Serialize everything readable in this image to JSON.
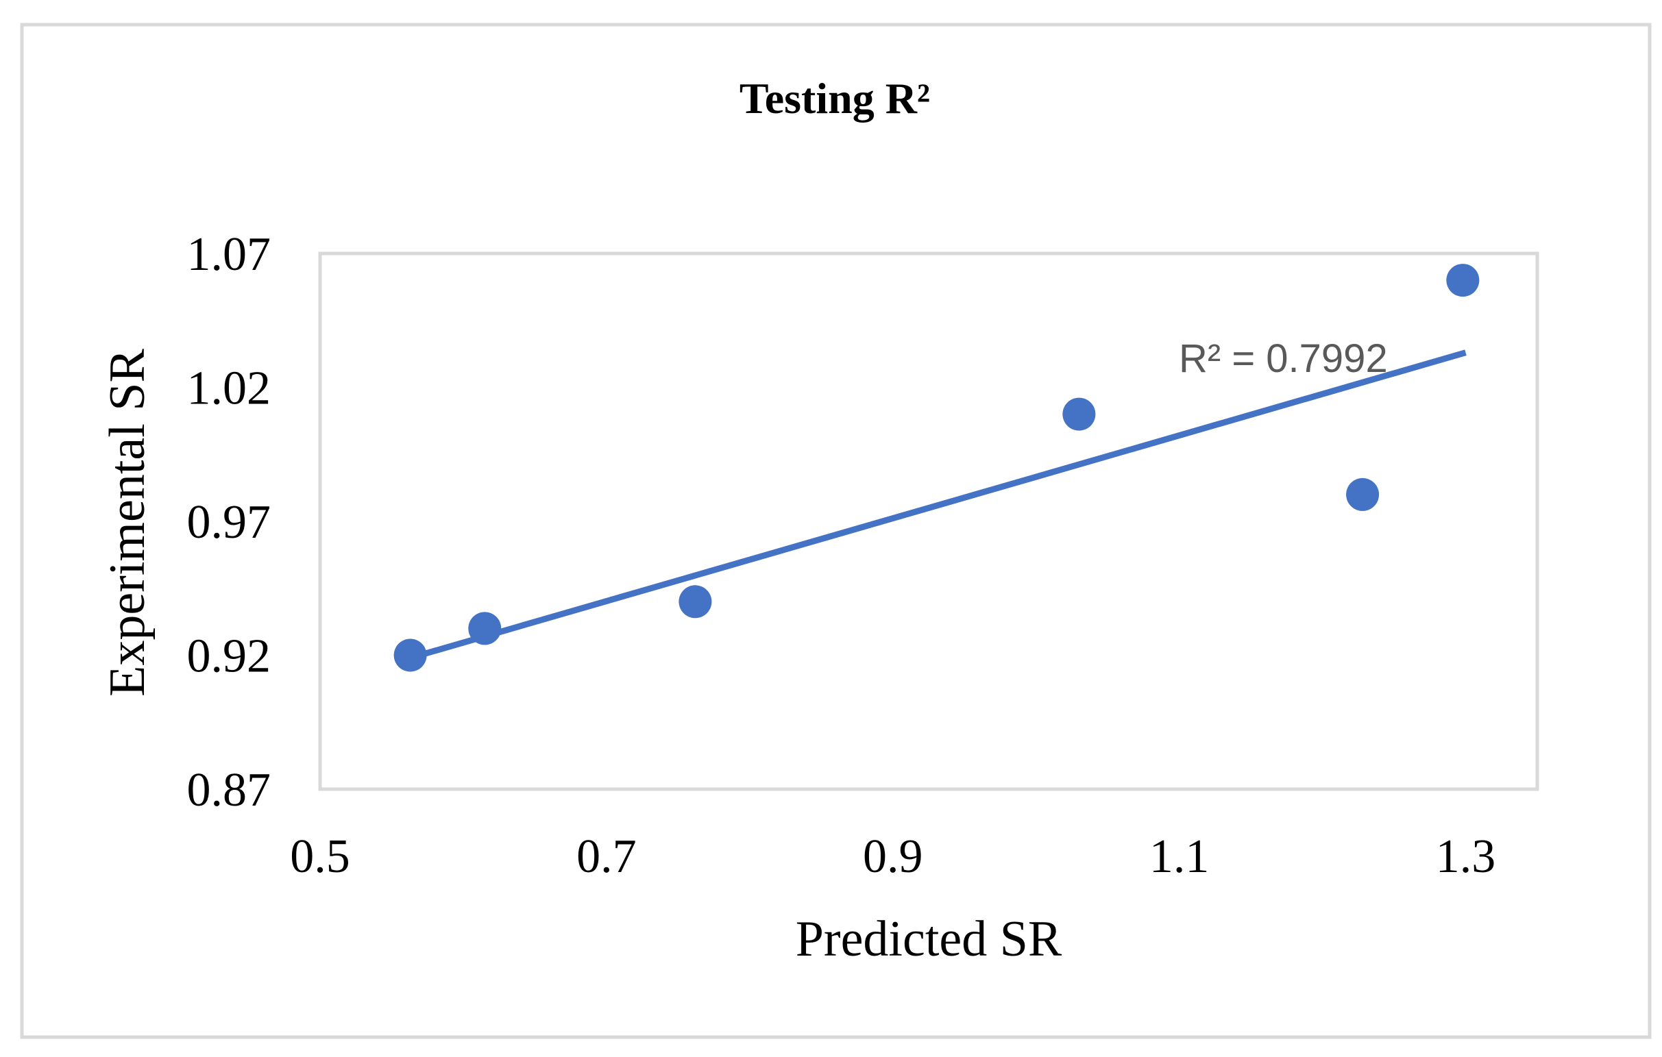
{
  "chart_data": {
    "type": "scatter",
    "title": "Testing R²",
    "xlabel": "Predicted SR",
    "ylabel": "Experimental SR",
    "xlim": [
      0.5,
      1.35
    ],
    "ylim": [
      0.87,
      1.07
    ],
    "x_ticks": [
      "0.5",
      "0.7",
      "0.9",
      "1.1",
      "1.3"
    ],
    "y_ticks": [
      "0.87",
      "0.92",
      "0.97",
      "1.02",
      "1.07"
    ],
    "x_tick_values": [
      0.5,
      0.7,
      0.9,
      1.1,
      1.3
    ],
    "y_tick_values": [
      0.87,
      0.92,
      0.97,
      1.02,
      1.07
    ],
    "grid": false,
    "legend": "none",
    "series": [
      {
        "x": [
          0.563,
          0.615,
          0.762,
          1.03,
          1.228,
          1.298
        ],
        "y": [
          0.92,
          0.93,
          0.94,
          1.01,
          0.98,
          1.06
        ],
        "color": "#4472C4"
      }
    ],
    "trendline": {
      "type": "linear",
      "x_range": [
        0.563,
        1.3
      ],
      "y_range": [
        0.919,
        1.033
      ],
      "color": "#4472C4",
      "label": "R² = 0.7992"
    }
  }
}
